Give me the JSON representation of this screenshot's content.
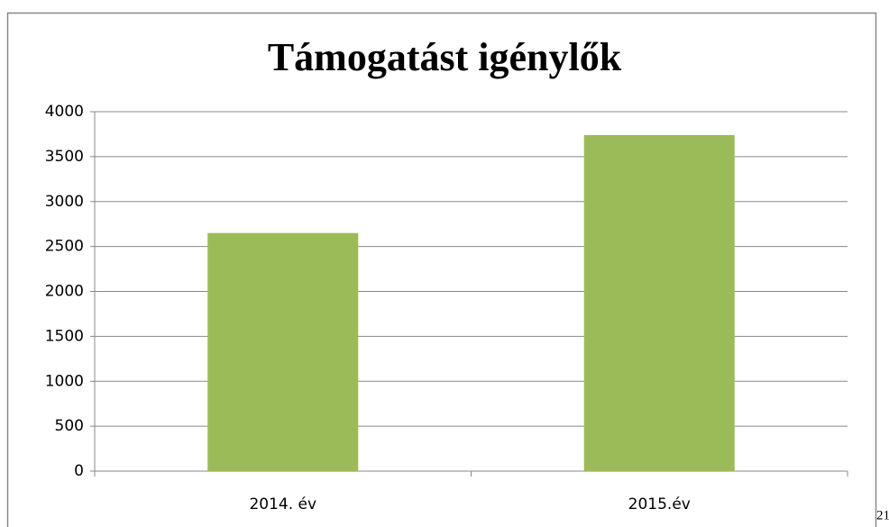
{
  "chart_data": {
    "type": "bar",
    "title": "Támogatást igénylők",
    "categories": [
      "2014. év",
      "2015.év"
    ],
    "values": [
      2650,
      3740
    ],
    "color": "#9bbb59",
    "ylim": [
      0,
      4000
    ],
    "yticks": [
      0,
      500,
      1000,
      1500,
      2000,
      2500,
      3000,
      3500,
      4000
    ],
    "grid": true
  },
  "page_number": "21"
}
